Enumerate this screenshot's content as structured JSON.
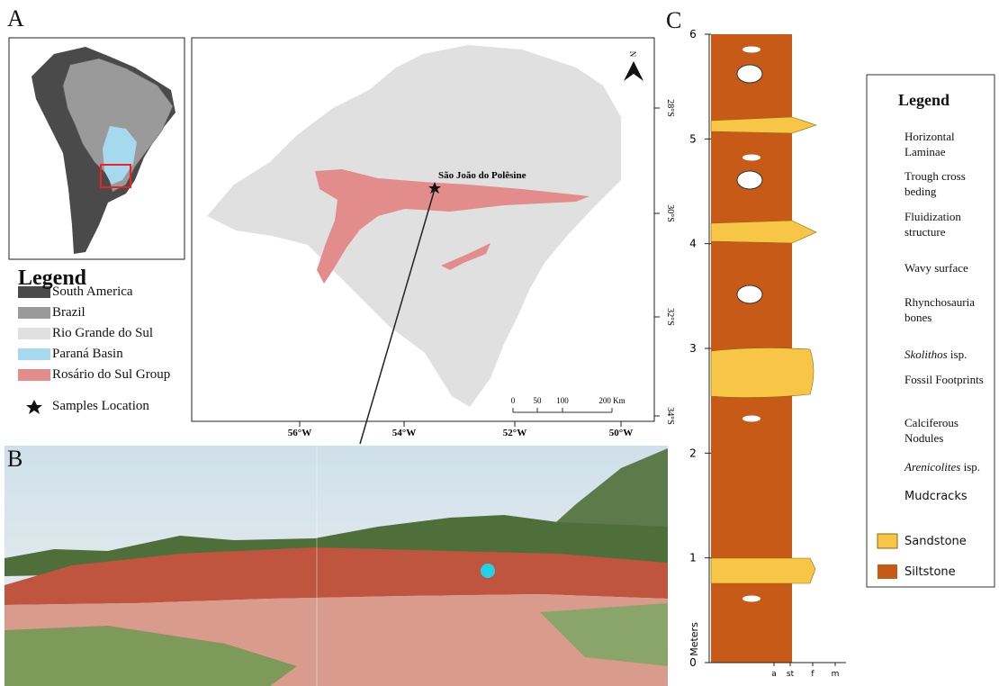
{
  "panel_a": {
    "letter": "A",
    "legend": {
      "title": "Legend",
      "items": [
        "South America",
        "Brazil",
        "Rio Grande do Sul",
        "Paraná Basin",
        "Rosário do Sul Group",
        "Samples Location"
      ]
    },
    "site_label": "São João do Polêsine",
    "north": "N",
    "lat_ticks": [
      "28°S",
      "30°S",
      "32°S",
      "34°S"
    ],
    "lon_ticks": [
      "56°W",
      "54°W",
      "52°W",
      "50°W"
    ],
    "scale_labels": [
      "0",
      "50",
      "100",
      "200 Km"
    ]
  },
  "panel_b": {
    "letter": "B"
  },
  "panel_c": {
    "letter": "C",
    "axis_label": "Meters",
    "y_ticks": [
      0,
      1,
      2,
      3,
      4,
      5,
      6
    ],
    "grain_sizes": [
      "a",
      "st",
      "f",
      "m"
    ],
    "legend": {
      "title": "Legend",
      "items": [
        "Horizontal Laminae",
        "Trough cross beding",
        "Fluidization structure",
        "Wavy surface",
        "Rhynchosauria bones",
        {
          "genus": "Skolithos",
          "suffix": "isp."
        },
        "Fossil Footprints",
        "Calciferous Nodules",
        {
          "genus": "Arenicolites",
          "suffix": "isp."
        },
        "Mudcracks",
        "Sandstone",
        "Siltstone"
      ]
    }
  }
}
